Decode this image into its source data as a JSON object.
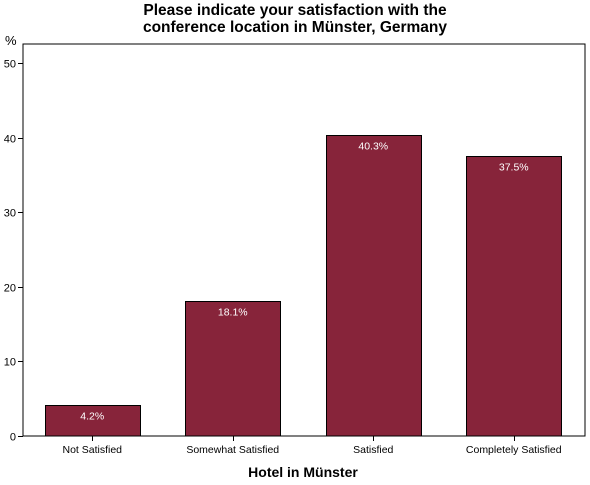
{
  "chart_data": {
    "type": "bar",
    "title_lines": [
      "Please indicate your satisfaction with the",
      "conference location in Münster, Germany"
    ],
    "xlabel": "Hotel in Münster",
    "ylabel": "%",
    "categories": [
      "Not Satisfied",
      "Somewhat Satisfied",
      "Satisfied",
      "Completely Satisfied"
    ],
    "values": [
      4.2,
      18.1,
      40.3,
      37.5
    ],
    "data_labels": [
      "4.2%",
      "18.1%",
      "40.3%",
      "37.5%"
    ],
    "ylim": [
      0,
      50
    ],
    "yticks": [
      0,
      10,
      20,
      30,
      40,
      50
    ],
    "bar_color": "#87243a",
    "grid": false,
    "legend": "none"
  }
}
